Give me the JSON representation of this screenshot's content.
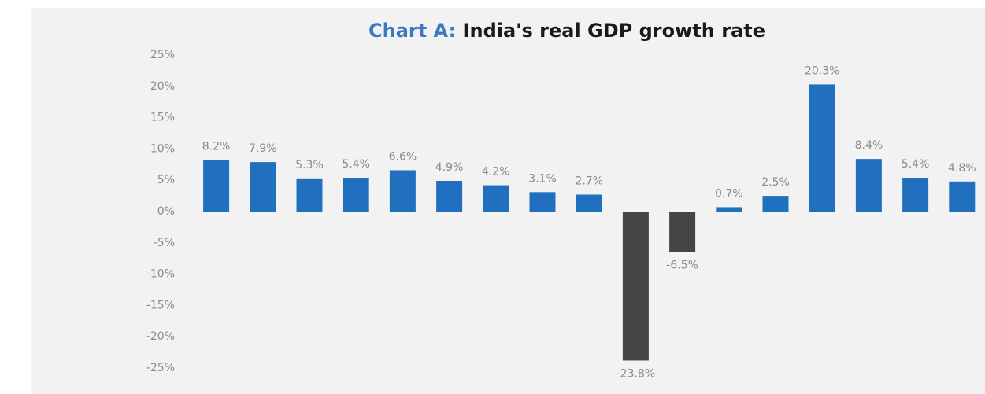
{
  "chart_data": {
    "type": "bar",
    "title_parts": [
      {
        "text": "Chart A:",
        "color": "#3a78c2"
      },
      {
        "text": "India's real GDP growth rate",
        "color": "#1a1a1a"
      }
    ],
    "categories": [
      null,
      null,
      null,
      null,
      null,
      null,
      null,
      null,
      null,
      null,
      null,
      null,
      null,
      null,
      null,
      null,
      null
    ],
    "values": [
      8.2,
      7.9,
      5.3,
      5.4,
      6.6,
      4.9,
      4.2,
      3.1,
      2.7,
      -23.8,
      -6.5,
      0.7,
      2.5,
      20.3,
      8.4,
      5.4,
      4.8
    ],
    "value_labels": [
      "8.2%",
      "7.9%",
      "5.3%",
      "5.4%",
      "6.6%",
      "4.9%",
      "4.2%",
      "3.1%",
      "2.7%",
      "-23.8%",
      "-6.5%",
      "0.7%",
      "2.5%",
      "20.3%",
      "8.4%",
      "5.4%",
      "4.8%"
    ],
    "colors": [
      "#2170c0",
      "#2170c0",
      "#2170c0",
      "#2170c0",
      "#2170c0",
      "#2170c0",
      "#2170c0",
      "#2170c0",
      "#2170c0",
      "#454545",
      "#454545",
      "#2170c0",
      "#2170c0",
      "#2170c0",
      "#2170c0",
      "#2170c0",
      "#2170c0"
    ],
    "ylim": [
      -25,
      25
    ],
    "yticks": [
      {
        "value": -25,
        "label": "-25%"
      },
      {
        "value": -20,
        "label": "-20%"
      },
      {
        "value": -15,
        "label": "-15%"
      },
      {
        "value": -10,
        "label": "-10%"
      },
      {
        "value": -5,
        "label": "-5%"
      },
      {
        "value": 0,
        "label": "0%"
      },
      {
        "value": 5,
        "label": "5%"
      },
      {
        "value": 10,
        "label": "10%"
      },
      {
        "value": 15,
        "label": "15%"
      },
      {
        "value": 20,
        "label": "20%"
      },
      {
        "value": 25,
        "label": "25%"
      }
    ],
    "grid": false
  }
}
